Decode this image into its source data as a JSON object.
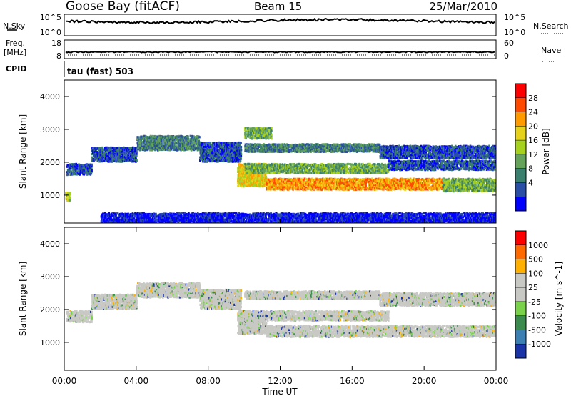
{
  "header": {
    "site": "Goose Bay (fitACF)",
    "beam": "Beam 15",
    "date": "25/Mar/2010"
  },
  "status_panels": {
    "nsky": {
      "left_label": "N.Sky",
      "ticks_left": [
        "10^5",
        "10^0"
      ],
      "ticks_right": [
        "10^5",
        "10^0"
      ],
      "right_label": "N.Search"
    },
    "freq": {
      "left_label_1": "Freq.",
      "left_label_2": "[MHz]",
      "ticks_left": [
        "18",
        "8"
      ],
      "ticks_right": [
        "60",
        "0"
      ],
      "right_label": "Nave"
    },
    "cpid": {
      "label": "CPID",
      "value": "tau (fast) 503"
    }
  },
  "chart_data": [
    {
      "type": "heatmap",
      "name": "power",
      "ylabel": "Slant Range [km]",
      "y_ticks": [
        1000,
        2000,
        3000,
        4000
      ],
      "ylim": [
        150,
        4500
      ],
      "xlim": [
        0,
        24
      ],
      "colorbar": {
        "label": "Power [dB]",
        "ticks": [
          "28",
          "24",
          "20",
          "16",
          "12",
          "8",
          "4"
        ],
        "colors": [
          "#0000ff",
          "#2a4ea6",
          "#3b7f6e",
          "#66a35a",
          "#a6d11e",
          "#e6d21a",
          "#ff9a00",
          "#ff4a00",
          "#ff0000"
        ]
      },
      "bands": [
        {
          "x0": 0.1,
          "x1": 1.5,
          "y0": 1650,
          "y1": 2000,
          "level": 1
        },
        {
          "x0": 1.5,
          "x1": 4.0,
          "y0": 2050,
          "y1": 2500,
          "level": 1
        },
        {
          "x0": 4.0,
          "x1": 7.5,
          "y0": 2400,
          "y1": 2850,
          "level": 2
        },
        {
          "x0": 7.5,
          "x1": 9.8,
          "y0": 2050,
          "y1": 2650,
          "level": 1
        },
        {
          "x0": 9.6,
          "x1": 11.2,
          "y0": 1300,
          "y1": 2000,
          "level": 5
        },
        {
          "x0": 11.2,
          "x1": 21.0,
          "y0": 1200,
          "y1": 1550,
          "level": 6
        },
        {
          "x0": 21.0,
          "x1": 24.0,
          "y0": 1150,
          "y1": 1550,
          "level": 3
        },
        {
          "x0": 10.0,
          "x1": 17.5,
          "y0": 2350,
          "y1": 2600,
          "level": 2
        },
        {
          "x0": 10.0,
          "x1": 18.0,
          "y0": 1700,
          "y1": 2000,
          "level": 3
        },
        {
          "x0": 18.0,
          "x1": 24.0,
          "y0": 1800,
          "y1": 2100,
          "level": 1
        },
        {
          "x0": 10.0,
          "x1": 11.5,
          "y0": 2750,
          "y1": 3100,
          "level": 3
        },
        {
          "x0": 17.5,
          "x1": 24.0,
          "y0": 2150,
          "y1": 2550,
          "level": 1
        },
        {
          "x0": 0.05,
          "x1": 0.3,
          "y0": 850,
          "y1": 1150,
          "level": 4
        },
        {
          "x0": 2.0,
          "x1": 24.0,
          "y0": 200,
          "y1": 500,
          "level": 0
        }
      ]
    },
    {
      "type": "heatmap",
      "name": "velocity",
      "ylabel": "Slant Range [km]",
      "y_ticks": [
        1000,
        2000,
        3000,
        4000
      ],
      "ylim": [
        150,
        4500
      ],
      "xlim": [
        0,
        24
      ],
      "xlabel": "Time UT",
      "x_ticks": [
        "00:00",
        "04:00",
        "08:00",
        "12:00",
        "16:00",
        "20:00",
        "00:00"
      ],
      "colorbar": {
        "label": "Velocity [m s^-1]",
        "ticks": [
          "1000",
          "500",
          "100",
          "25",
          "-25",
          "-100",
          "-500",
          "-1000"
        ],
        "colors": [
          "#1a33a6",
          "#3b7fb3",
          "#3b8a4e",
          "#7ad14a",
          "#c8c8c4",
          "#c8c8c4",
          "#ffb000",
          "#ff6a00",
          "#ff0000"
        ]
      },
      "bands": [
        {
          "x0": 0.1,
          "x1": 1.5,
          "y0": 1650,
          "y1": 2000
        },
        {
          "x0": 1.5,
          "x1": 4.0,
          "y0": 2050,
          "y1": 2500
        },
        {
          "x0": 4.0,
          "x1": 7.5,
          "y0": 2400,
          "y1": 2850
        },
        {
          "x0": 7.5,
          "x1": 9.8,
          "y0": 2050,
          "y1": 2650
        },
        {
          "x0": 9.6,
          "x1": 11.2,
          "y0": 1300,
          "y1": 2000
        },
        {
          "x0": 11.2,
          "x1": 24.0,
          "y0": 1200,
          "y1": 1550
        },
        {
          "x0": 10.0,
          "x1": 17.5,
          "y0": 2350,
          "y1": 2600
        },
        {
          "x0": 10.0,
          "x1": 18.0,
          "y0": 1700,
          "y1": 2000
        },
        {
          "x0": 17.5,
          "x1": 24.0,
          "y0": 2150,
          "y1": 2550
        }
      ]
    }
  ]
}
